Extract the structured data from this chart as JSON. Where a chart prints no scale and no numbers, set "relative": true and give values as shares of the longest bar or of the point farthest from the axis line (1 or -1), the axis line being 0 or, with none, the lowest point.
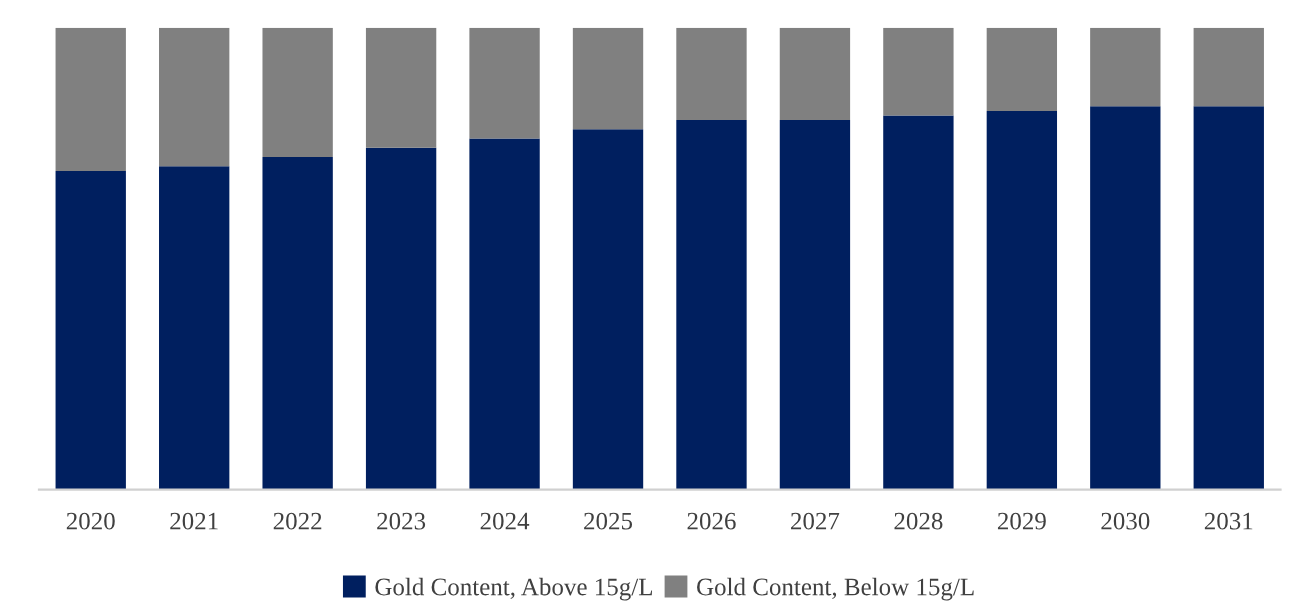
{
  "chart_data": {
    "type": "bar",
    "stacked": true,
    "relative": true,
    "categories": [
      "2020",
      "2021",
      "2022",
      "2023",
      "2024",
      "2025",
      "2026",
      "2027",
      "2028",
      "2029",
      "2030",
      "2031"
    ],
    "series": [
      {
        "name": "Gold Content, Above 15g/L",
        "color": "#001f5f",
        "values": [
          0.69,
          0.7,
          0.72,
          0.74,
          0.76,
          0.78,
          0.8,
          0.8,
          0.81,
          0.82,
          0.83,
          0.83
        ]
      },
      {
        "name": "Gold Content, Below 15g/L",
        "color": "#808080",
        "values": [
          0.31,
          0.3,
          0.28,
          0.26,
          0.24,
          0.22,
          0.2,
          0.2,
          0.19,
          0.18,
          0.17,
          0.17
        ]
      }
    ],
    "legend": "bottom",
    "grid": false
  }
}
